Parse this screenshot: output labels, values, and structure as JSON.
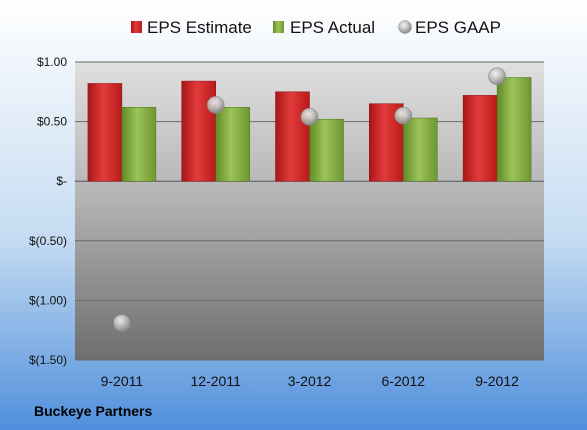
{
  "chart_data": {
    "type": "bar",
    "categories": [
      "9-2011",
      "12-2011",
      "3-2012",
      "6-2012",
      "9-2012"
    ],
    "series": [
      {
        "name": "EPS Estimate",
        "type": "bar",
        "color": "#cc2222",
        "values": [
          0.82,
          0.84,
          0.75,
          0.65,
          0.72
        ]
      },
      {
        "name": "EPS Actual",
        "type": "bar",
        "color": "#7aa23a",
        "values": [
          0.62,
          0.62,
          0.52,
          0.53,
          0.87
        ]
      },
      {
        "name": "EPS GAAP",
        "type": "scatter",
        "color": "#b0b0b0",
        "values": [
          -1.19,
          0.64,
          0.54,
          0.55,
          0.88
        ]
      }
    ],
    "yticks": [
      {
        "value": 1.0,
        "label": "$1.00"
      },
      {
        "value": 0.5,
        "label": "$0.50"
      },
      {
        "value": 0.0,
        "label": "$-"
      },
      {
        "value": -0.5,
        "label": "$(0.50)"
      },
      {
        "value": -1.0,
        "label": "$(1.00)"
      },
      {
        "value": -1.5,
        "label": "$(1.50)"
      }
    ],
    "ylim": [
      -1.5,
      1.0
    ],
    "grid": true,
    "legend": "top",
    "company": "Buckeye Partners"
  }
}
